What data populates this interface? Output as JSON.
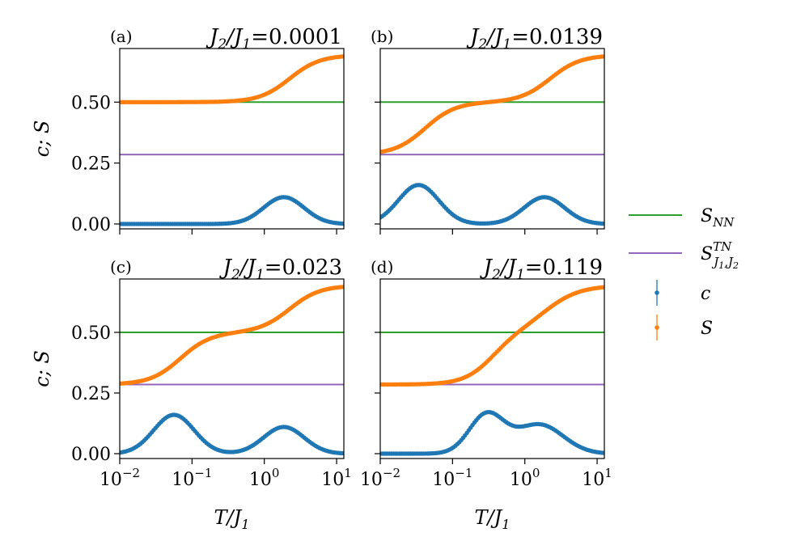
{
  "chart_data": {
    "type": "scatter",
    "layout": "2x2 grid of panels, legend at right",
    "x_scale": "log",
    "xlim_log10": [
      -2,
      1.1
    ],
    "ylim": [
      -0.02,
      0.72
    ],
    "x_ticks": [
      {
        "value": 0.01,
        "label": "10−2"
      },
      {
        "value": 0.1,
        "label": "10−1"
      },
      {
        "value": 1,
        "label": "100"
      },
      {
        "value": 10,
        "label": "101"
      }
    ],
    "x_tick_parts": [
      {
        "base": "10",
        "exp": "−2"
      },
      {
        "base": "10",
        "exp": "−1"
      },
      {
        "base": "10",
        "exp": "0"
      },
      {
        "base": "10",
        "exp": "1"
      }
    ],
    "y_ticks": [
      {
        "value": 0.0,
        "label": "0.00"
      },
      {
        "value": 0.25,
        "label": "0.25"
      },
      {
        "value": 0.5,
        "label": "0.50"
      }
    ],
    "xlabel": "T/J1",
    "xlabel_parts": {
      "main": "T/J",
      "sub": "1"
    },
    "ylabel": "c; S",
    "colors": {
      "c": "#1f77b4",
      "S": "#ff7f0e",
      "S_NN": "#2ca02c",
      "S_TN": "#9467bd"
    },
    "reference_lines": {
      "S_NN": 0.5,
      "S_TN": 0.285
    },
    "legend": [
      {
        "key": "S_NN",
        "label": "S_NN",
        "kind": "line"
      },
      {
        "key": "S_TN",
        "label": "S^TN_{J1,J2}",
        "kind": "line"
      },
      {
        "key": "c",
        "label": "c",
        "kind": "errorbar"
      },
      {
        "key": "S",
        "label": "S",
        "kind": "errorbar"
      }
    ],
    "panels": [
      {
        "tag": "(a)",
        "title": "J2/J1=0.0001",
        "ratio": "0.0001",
        "c_peaks": [
          {
            "log10T": 0.27,
            "height": 0.11,
            "width": 0.28
          }
        ],
        "S_steps": [
          {
            "from": 0.5,
            "to": 0.693,
            "center_log10T": 0.35,
            "width": 0.21
          }
        ],
        "S_low_T": 0.5
      },
      {
        "tag": "(b)",
        "title": "J2/J1=0.0139",
        "ratio": "0.0139",
        "c_peaks": [
          {
            "log10T": -1.47,
            "height": 0.16,
            "width": 0.28
          },
          {
            "log10T": 0.27,
            "height": 0.11,
            "width": 0.28
          }
        ],
        "S_steps": [
          {
            "from": 0.285,
            "to": 0.5,
            "center_log10T": -1.38,
            "width": 0.21
          },
          {
            "from": 0.5,
            "to": 0.693,
            "center_log10T": 0.35,
            "width": 0.21
          }
        ],
        "S_low_T": 0.285
      },
      {
        "tag": "(c)",
        "title": "J2/J1=0.023",
        "ratio": "0.023",
        "c_peaks": [
          {
            "log10T": -1.25,
            "height": 0.16,
            "width": 0.28
          },
          {
            "log10T": 0.27,
            "height": 0.11,
            "width": 0.28
          }
        ],
        "S_steps": [
          {
            "from": 0.285,
            "to": 0.5,
            "center_log10T": -1.16,
            "width": 0.21
          },
          {
            "from": 0.5,
            "to": 0.693,
            "center_log10T": 0.35,
            "width": 0.21
          }
        ],
        "S_low_T": 0.285
      },
      {
        "tag": "(d)",
        "title": "J2/J1=0.119",
        "ratio": "0.119",
        "c_peaks": [
          {
            "log10T": -0.53,
            "height": 0.16,
            "width": 0.24
          },
          {
            "log10T": 0.2,
            "height": 0.12,
            "width": 0.33
          }
        ],
        "S_steps": [
          {
            "from": 0.285,
            "to": 0.5,
            "center_log10T": -0.45,
            "width": 0.2
          },
          {
            "from": 0.5,
            "to": 0.693,
            "center_log10T": 0.3,
            "width": 0.24
          }
        ],
        "S_low_T": 0.285
      }
    ],
    "points_per_series": 120
  }
}
